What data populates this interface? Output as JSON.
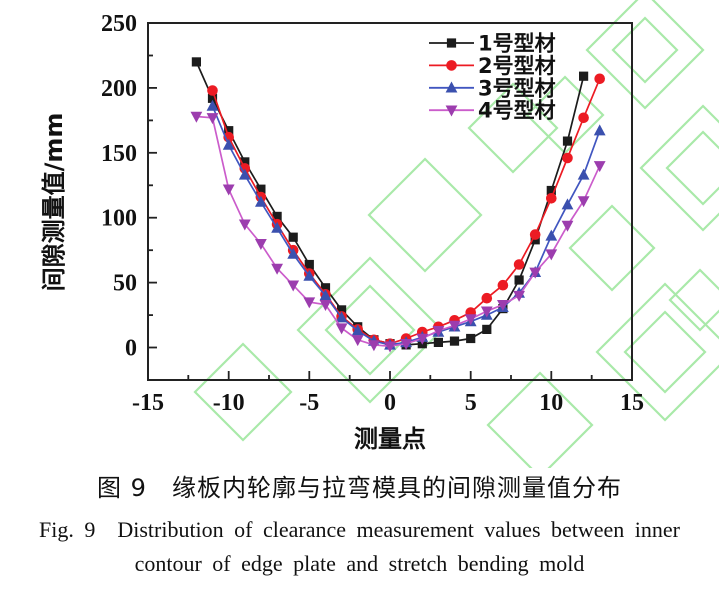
{
  "figure": {
    "caption_zh": "图 9　缘板内轮廓与拉弯模具的间隙测量值分布",
    "caption_en_line1": "Fig. 9　Distribution of clearance measurement values between inner",
    "caption_en_line2": "contour of edge plate and stretch bending mold"
  },
  "colors": {
    "axis": "#222222",
    "text": "#111111",
    "watermark_green": "#a0e7a0",
    "series_black": "#1c1c1c",
    "series_red": "#ec1b23",
    "series_blue": "#3b50ae",
    "series_purple_marker": "#9c3dae",
    "series_purple_line": "#cb5ccb"
  },
  "chart_data": {
    "type": "line",
    "title": "",
    "xlabel": "测量点",
    "ylabel": "间隙测量值/mm",
    "xlim": [
      -15,
      15
    ],
    "ylim": [
      -25,
      250
    ],
    "grid": false,
    "legend_position": "inside-top-right",
    "x_major_ticks": [
      -15,
      -10,
      -5,
      0,
      5,
      10,
      15
    ],
    "x_tick_labels": [
      "-15",
      "-10",
      "-5",
      "0",
      "5",
      "10",
      "15"
    ],
    "x_minor_ticks": [
      -12.5,
      -7.5,
      -2.5,
      2.5,
      7.5,
      12.5
    ],
    "y_major_ticks": [
      0,
      50,
      100,
      150,
      200,
      250
    ],
    "y_tick_labels": [
      "0",
      "50",
      "100",
      "150",
      "200",
      "250"
    ],
    "y_minor_ticks": [
      25,
      75,
      125,
      175,
      225
    ],
    "series": [
      {
        "name": "1号型材",
        "marker": "square",
        "color": "#1c1c1c",
        "line_color": "#1c1c1c",
        "x": [
          -12,
          -11,
          -10,
          -9,
          -8,
          -7,
          -6,
          -5,
          -4,
          -3,
          -2,
          -1,
          0,
          1,
          2,
          3,
          4,
          5,
          6,
          7,
          8,
          9,
          10,
          11,
          12
        ],
        "values": [
          220,
          192,
          167,
          143,
          122,
          101,
          85,
          64,
          46,
          29,
          16,
          6,
          3,
          2,
          3,
          4,
          5,
          7,
          14,
          30,
          52,
          83,
          121,
          159,
          209
        ]
      },
      {
        "name": "2号型材",
        "marker": "circle",
        "color": "#ec1b23",
        "line_color": "#ec1b23",
        "x": [
          -11,
          -10,
          -9,
          -8,
          -7,
          -6,
          -5,
          -4,
          -3,
          -2,
          -1,
          0,
          1,
          2,
          3,
          4,
          5,
          6,
          7,
          8,
          9,
          10,
          11,
          12,
          13
        ],
        "values": [
          198,
          162,
          138,
          116,
          95,
          75,
          57,
          41,
          24,
          14,
          6,
          3,
          7,
          12,
          16,
          21,
          27,
          38,
          48,
          64,
          87,
          115,
          146,
          177,
          207
        ]
      },
      {
        "name": "3号型材",
        "marker": "triangle-up",
        "color": "#3b50ae",
        "line_color": "#4156c0",
        "x": [
          -11,
          -10,
          -9,
          -8,
          -7,
          -6,
          -5,
          -4,
          -3,
          -2,
          -1,
          0,
          1,
          2,
          3,
          4,
          5,
          6,
          7,
          8,
          9,
          10,
          11,
          12,
          13
        ],
        "values": [
          186,
          156,
          133,
          112,
          92,
          72,
          55,
          40,
          23,
          13,
          5,
          2,
          4,
          8,
          12,
          16,
          20,
          25,
          31,
          42,
          58,
          86,
          110,
          133,
          167
        ]
      },
      {
        "name": "4号型材",
        "marker": "triangle-down",
        "color": "#9c3dae",
        "line_color": "#cb5ccb",
        "x": [
          -12,
          -11,
          -10,
          -9,
          -8,
          -7,
          -6,
          -5,
          -4,
          -3,
          -2,
          -1,
          0,
          1,
          2,
          3,
          4,
          5,
          6,
          7,
          8,
          9,
          10,
          11,
          12,
          13
        ],
        "values": [
          178,
          177,
          122,
          95,
          80,
          61,
          48,
          35,
          33,
          15,
          6,
          2,
          1,
          3,
          7,
          13,
          17,
          22,
          28,
          33,
          40,
          58,
          72,
          94,
          113,
          140
        ]
      }
    ]
  }
}
